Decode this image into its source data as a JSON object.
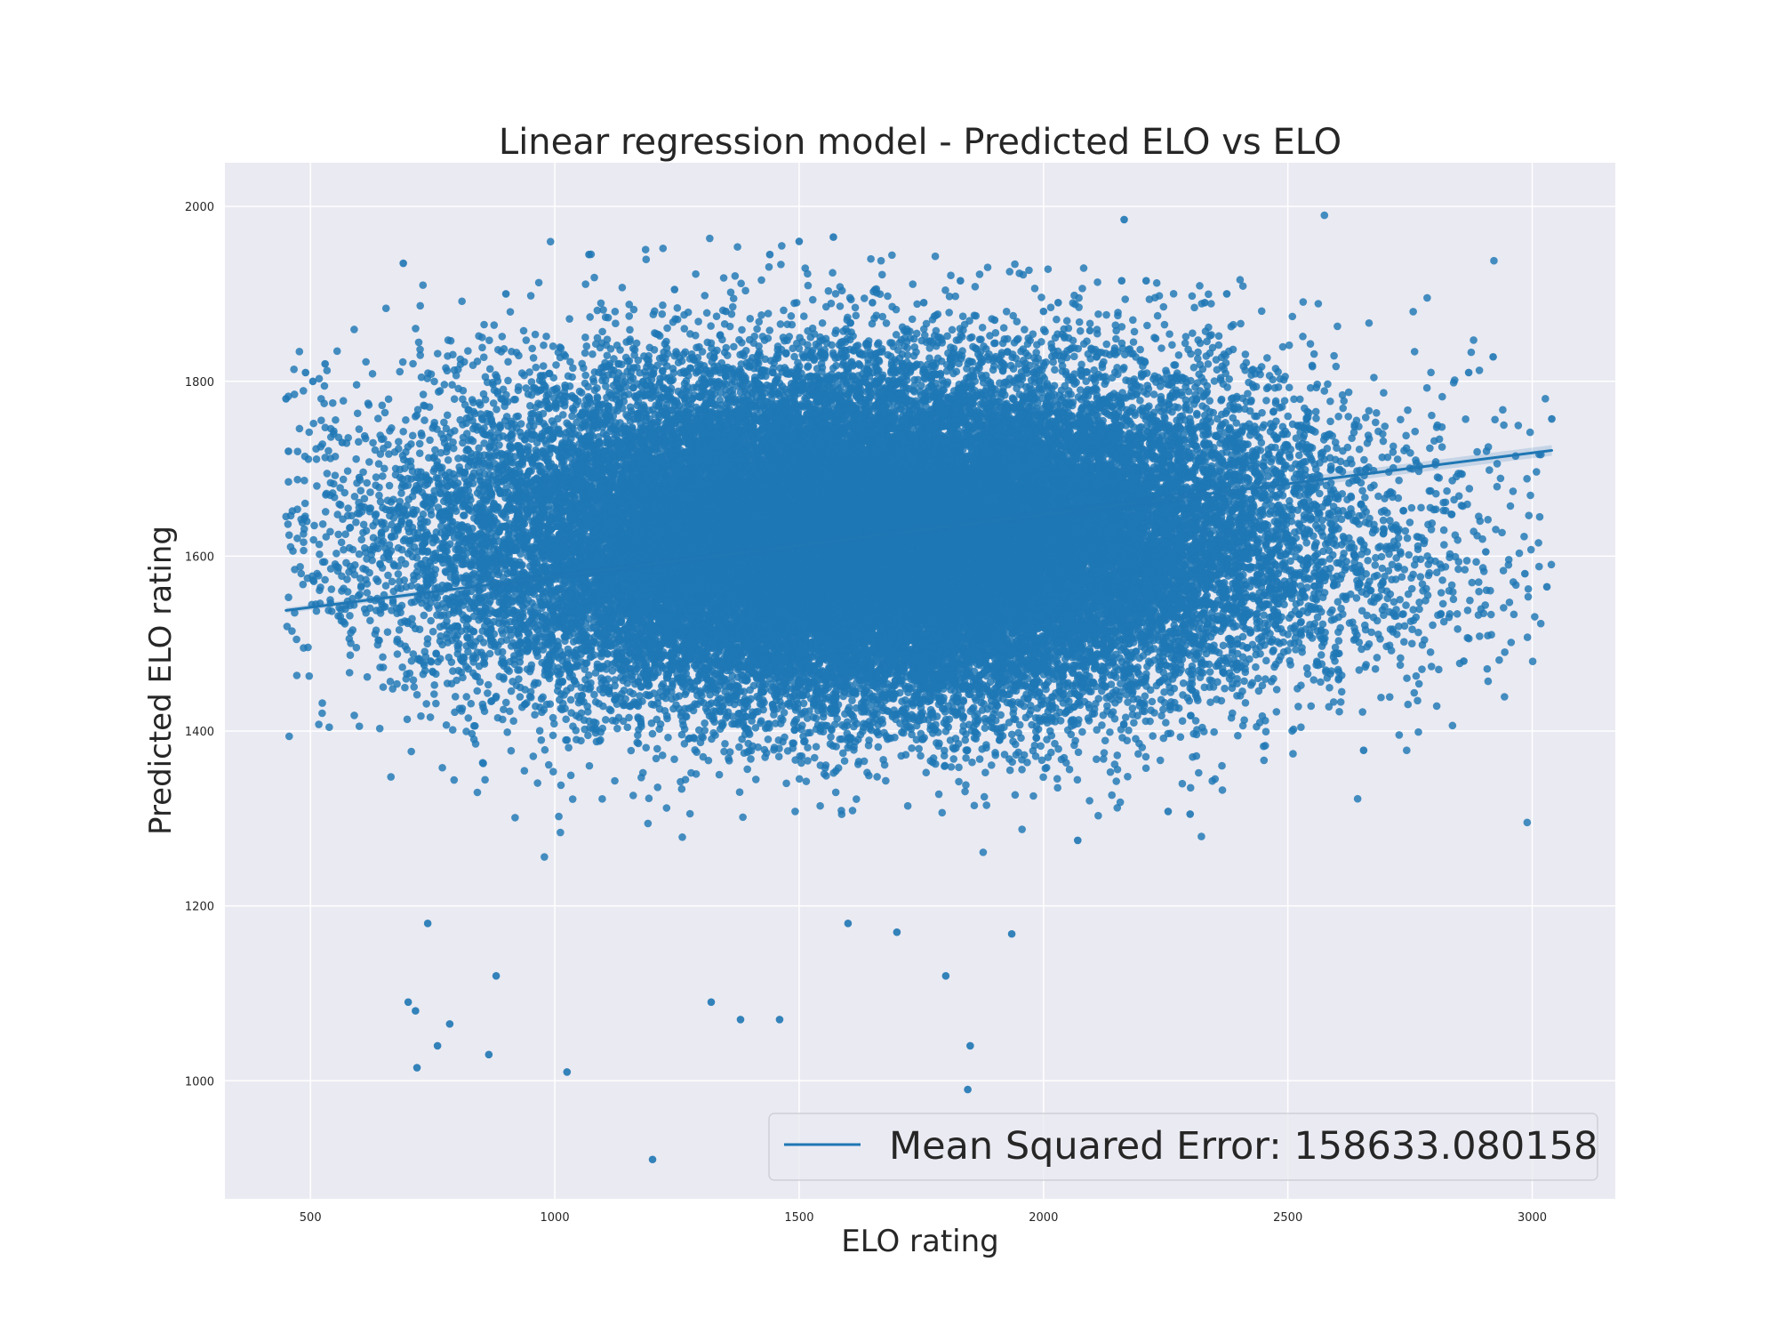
{
  "chart_data": {
    "type": "scatter",
    "title": "Linear regression model - Predicted ELO vs ELO",
    "xlabel": "ELO rating",
    "ylabel": "Predicted ELO rating",
    "xlim": [
      325,
      3170
    ],
    "ylim": [
      865,
      2050
    ],
    "x_ticks": [
      500,
      1000,
      1500,
      2000,
      2500,
      3000
    ],
    "y_ticks": [
      1000,
      1200,
      1400,
      1600,
      1800,
      2000
    ],
    "x_tick_labels": [
      "500",
      "1000",
      "1500",
      "2000",
      "2500",
      "3000"
    ],
    "y_tick_labels": [
      "1000",
      "1200",
      "1400",
      "1600",
      "1800",
      "2000"
    ],
    "grid": true,
    "legend_position": "bottom-right",
    "colors": {
      "points": "#1f77b4",
      "line": "#1f77b4",
      "background": "#eaeaf2",
      "grid": "#ffffff"
    },
    "series": [
      {
        "name": "Mean Squared Error: 158633.080158",
        "kind": "regression-line",
        "x": [
          450,
          3040
        ],
        "y": [
          1538,
          1721
        ]
      },
      {
        "kind": "scatter-core",
        "point_count_estimate": 40000,
        "cloud": {
          "x_mean": 1650,
          "x_std": 430,
          "y_mean": 1620,
          "y_std": 95,
          "x_range": [
            450,
            3040
          ],
          "y_range": [
            910,
            1990
          ]
        },
        "x": [],
        "y": []
      },
      {
        "kind": "scatter-outliers",
        "x": [
          450,
          455,
          490,
          505,
          530,
          565,
          600,
          690,
          700,
          715,
          718,
          740,
          760,
          785,
          865,
          880,
          900,
          990,
          1025,
          1070,
          1200,
          1245,
          1320,
          1350,
          1380,
          1440,
          1460,
          1500,
          1570,
          1600,
          1650,
          1700,
          1755,
          1800,
          1830,
          1845,
          1850,
          1900,
          1935,
          2000,
          2030,
          2070,
          2095,
          2160,
          2165,
          2210,
          2255,
          2300,
          2330,
          2375,
          2655,
          2860,
          2870,
          2905,
          2920,
          2985,
          3030,
          3040
        ],
        "y": [
          1780,
          1720,
          1810,
          1800,
          1820,
          1730,
          1690,
          1935,
          1090,
          1080,
          1015,
          1180,
          1040,
          1065,
          1030,
          1120,
          1900,
          1480,
          1010,
          1945,
          910,
          1905,
          1090,
          1880,
          1070,
          1945,
          1070,
          1960,
          1965,
          1180,
          1890,
          1170,
          1890,
          1120,
          1915,
          990,
          1040,
          1870,
          1168,
          1880,
          1890,
          1275,
          1858,
          1915,
          1985,
          1915,
          1308,
          1305,
          1890,
          1900,
          1378,
          1480,
          1810,
          1605,
          1828,
          1580,
          1565,
          1757
        ]
      }
    ]
  }
}
